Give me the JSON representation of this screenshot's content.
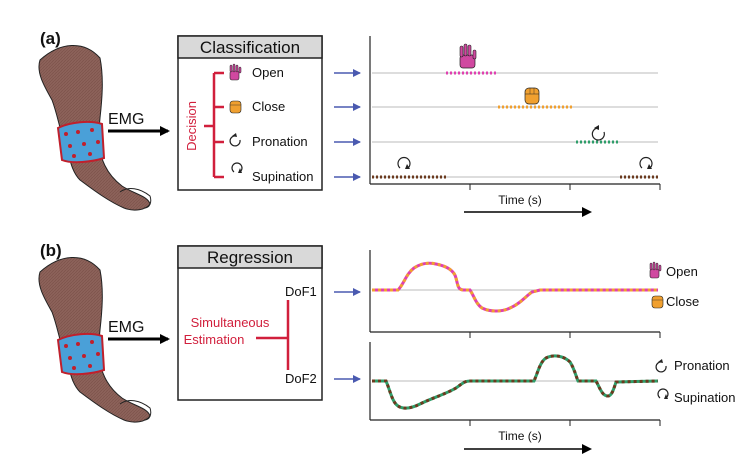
{
  "panel_a": {
    "letter": "(a)",
    "input_label": "EMG",
    "box_title": "Classification",
    "decision_label": "Decision",
    "classes": [
      {
        "label": "Open",
        "icon": "open-hand-icon"
      },
      {
        "label": "Close",
        "icon": "closed-fist-icon"
      },
      {
        "label": "Pronation",
        "icon": "counterclockwise-arrow-icon"
      },
      {
        "label": "Supination",
        "icon": "clockwise-arrow-icon"
      }
    ],
    "time_label": "Time (s)",
    "segment_colors": {
      "open": "#e040b0",
      "close": "#f0a030",
      "pronation": "#2e9e6a",
      "supination": "#6b3a1e"
    }
  },
  "panel_b": {
    "letter": "(b)",
    "input_label": "EMG",
    "box_title": "Regression",
    "estimation_label_1": "Simultaneous",
    "estimation_label_2": "Estimation",
    "dof1_label": "DoF1",
    "dof2_label": "DoF2",
    "dof1_legend": [
      "Open",
      "Close"
    ],
    "dof2_legend": [
      "Pronation",
      "Supination"
    ],
    "time_label": "Time (s)"
  },
  "colors": {
    "accent_red": "#d11f3c",
    "arrow_blue": "#4a5ab0",
    "box_header": "#d9d9d9",
    "arm_fill": "#8a6058",
    "armband_blue": "#4aa0d8"
  }
}
